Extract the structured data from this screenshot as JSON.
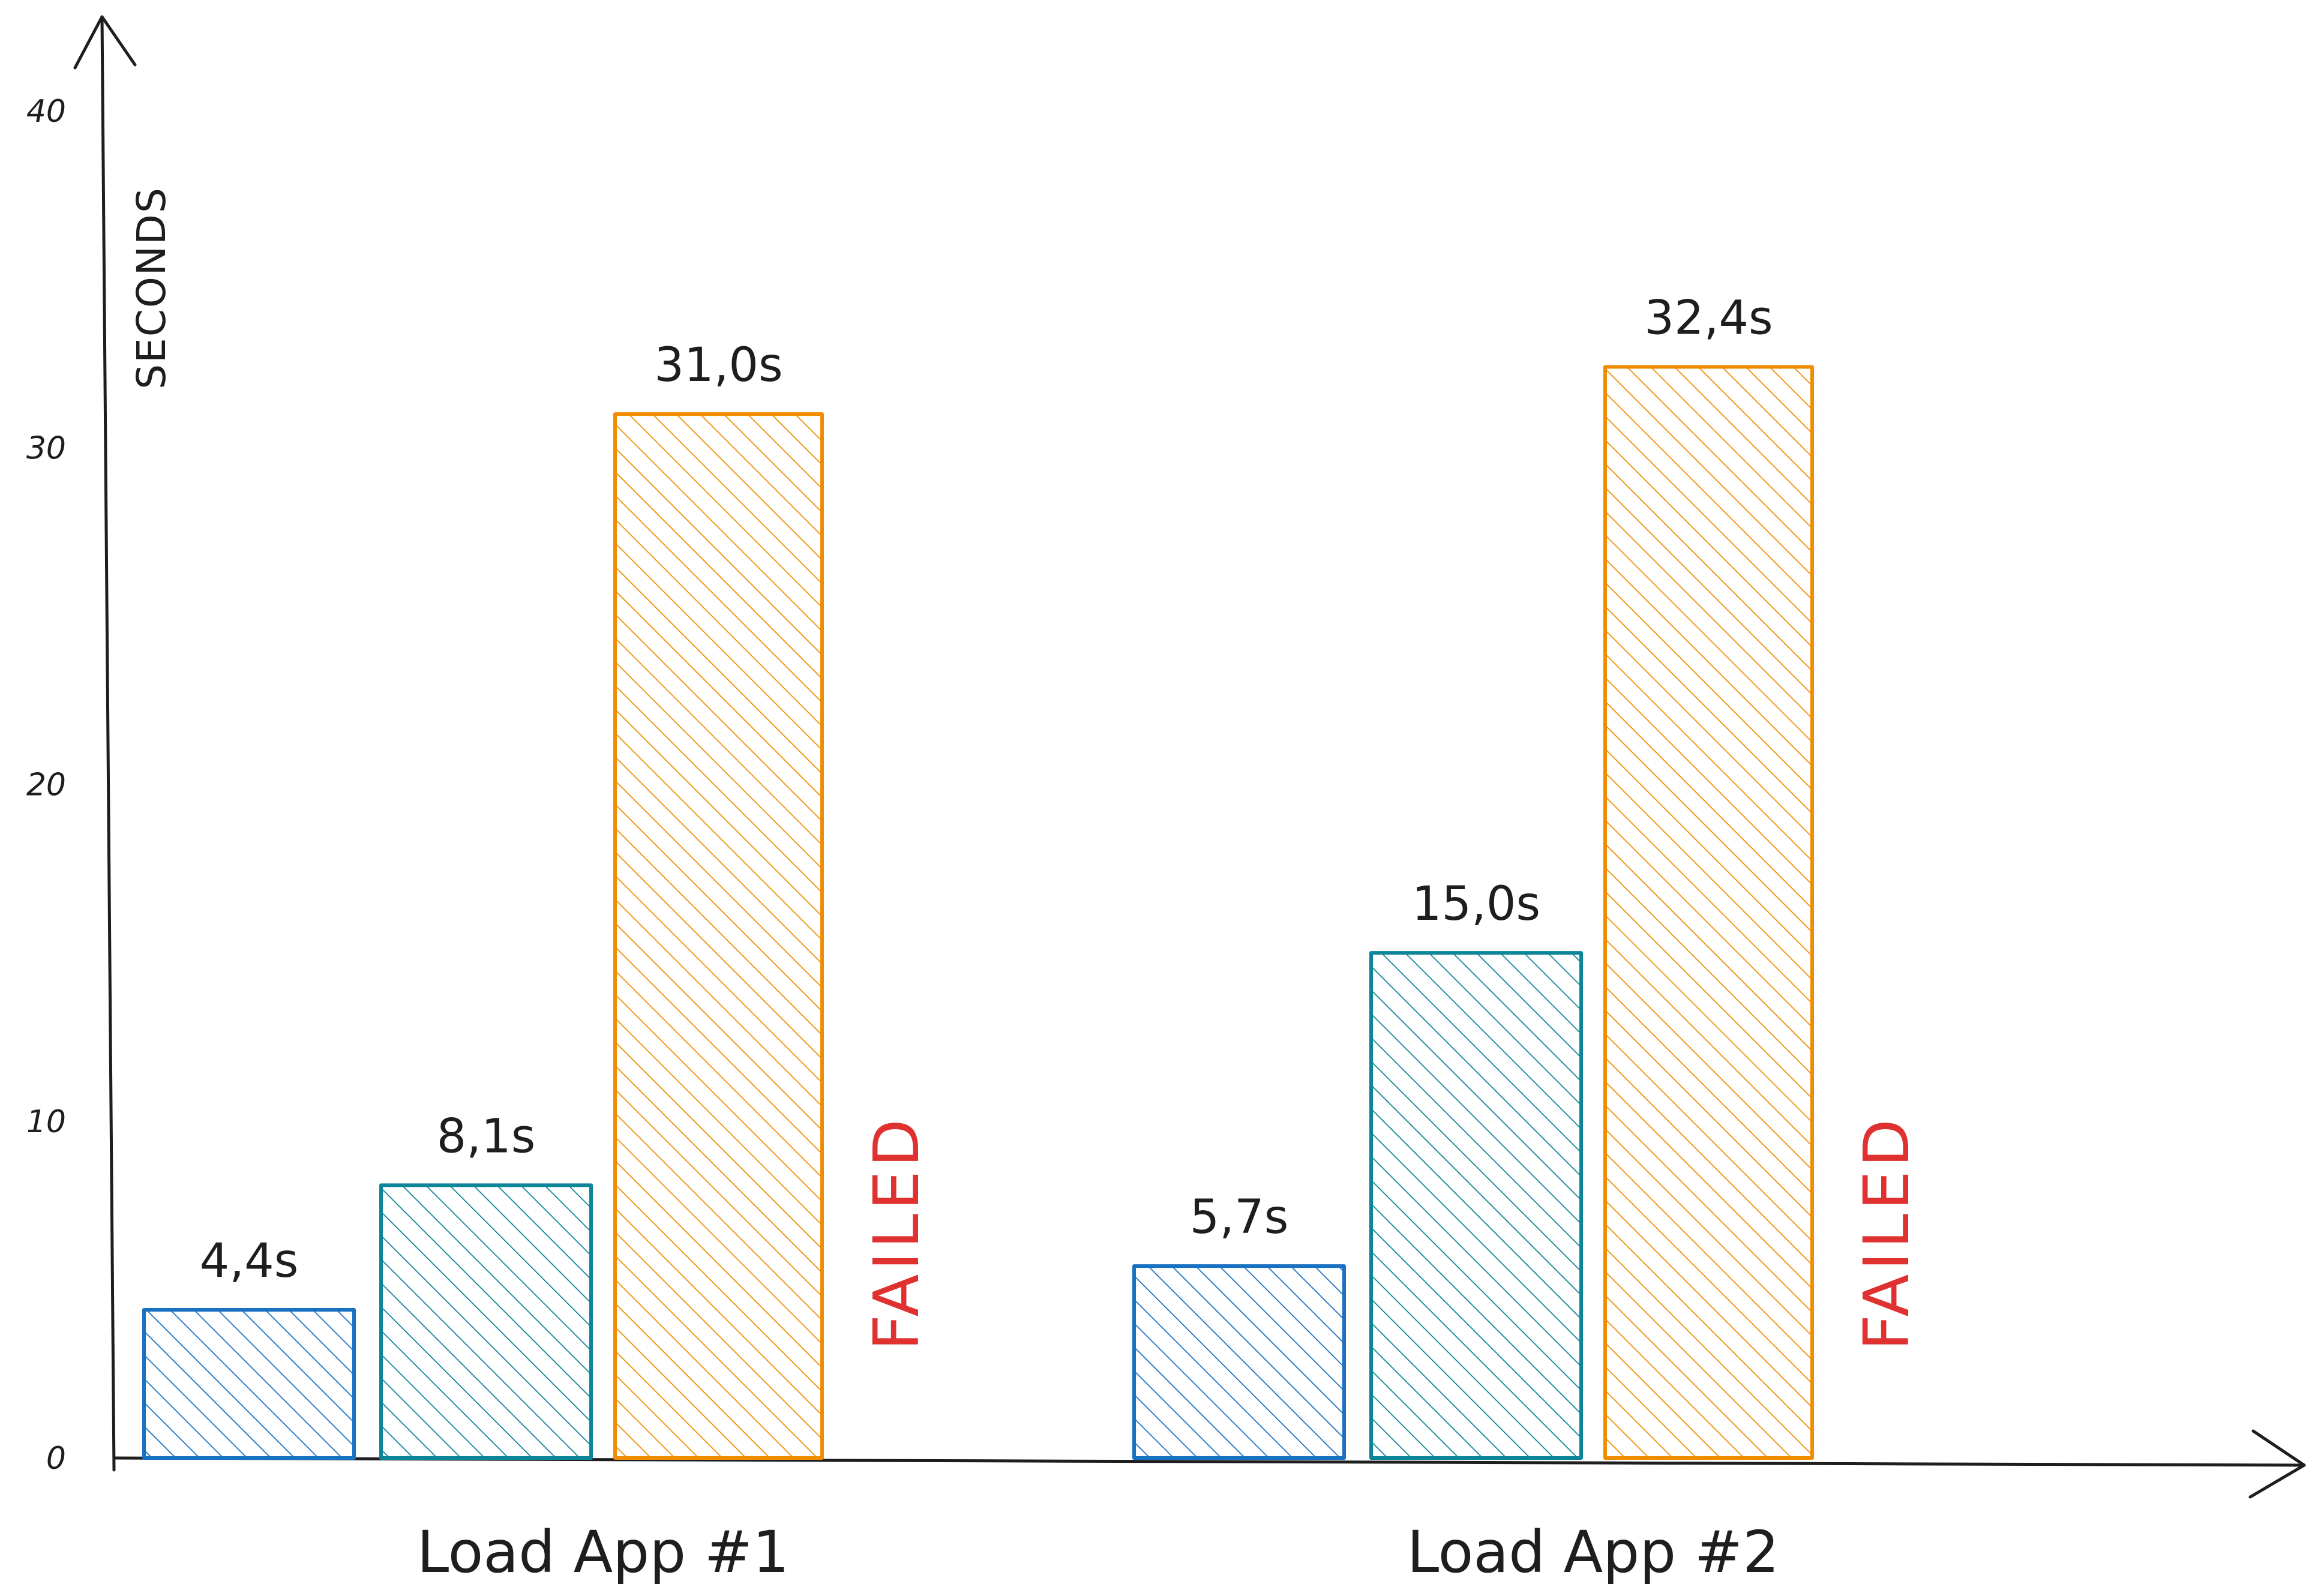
{
  "chart_data": {
    "type": "bar",
    "title": "",
    "xlabel": "",
    "ylabel": "SECONDS",
    "ylim": [
      0,
      40
    ],
    "yticks": [
      0,
      10,
      20,
      30,
      40
    ],
    "grid": false,
    "categories": [
      "Load App #1",
      "Load App #2"
    ],
    "series": [
      {
        "color": "#1971c2",
        "values": [
          4.4,
          5.7
        ],
        "labels": [
          "4,4s",
          "5,7s"
        ]
      },
      {
        "color": "#0c8599",
        "values": [
          8.1,
          15.0
        ],
        "labels": [
          "8,1s",
          "15,0s"
        ]
      },
      {
        "color": "#f08c00",
        "values": [
          31.0,
          32.4
        ],
        "labels": [
          "31,0s",
          "32,4s"
        ]
      },
      {
        "color": "#e03131",
        "values": [
          null,
          null
        ],
        "labels": [
          "FAILED",
          "FAILED"
        ]
      }
    ]
  }
}
